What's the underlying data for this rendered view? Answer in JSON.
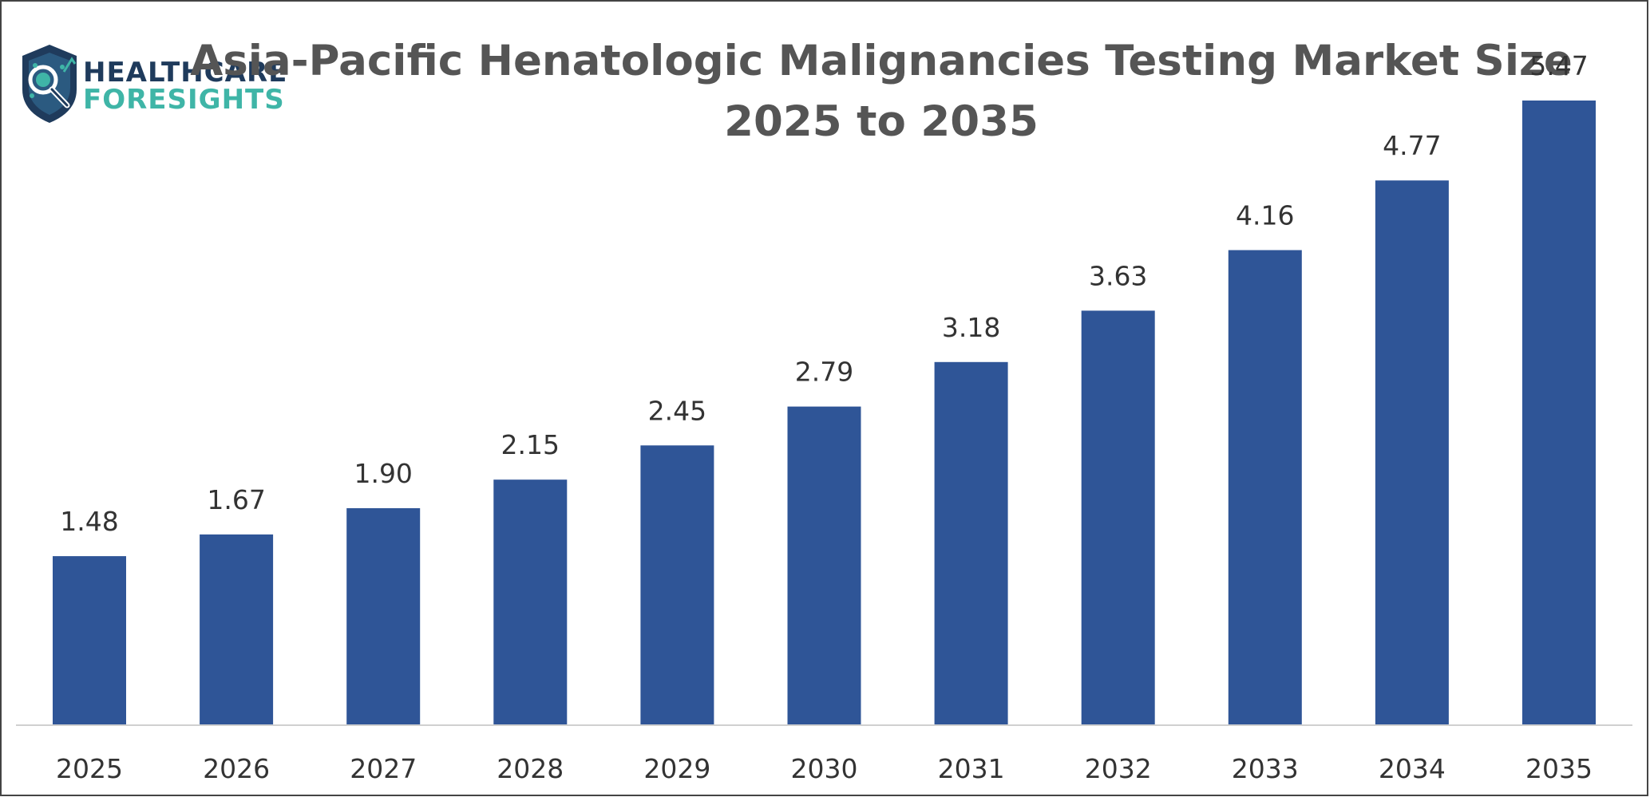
{
  "logo": {
    "line1": "HEALTHCARE",
    "line2": "FORESIGHTS",
    "icon": "shield-magnifier-icon",
    "colors": {
      "dark": "#1f3b5c",
      "teal": "#3fb5a7"
    }
  },
  "chart_data": {
    "type": "bar",
    "title": "Asia-Pacific Henatologic Malignancies Testing Market Size",
    "subtitle": "2025 to 2035",
    "xlabel": "",
    "ylabel": "",
    "categories": [
      "2025",
      "2026",
      "2027",
      "2028",
      "2029",
      "2030",
      "2031",
      "2032",
      "2033",
      "2034",
      "2035"
    ],
    "values": [
      1.48,
      1.67,
      1.9,
      2.15,
      2.45,
      2.79,
      3.18,
      3.63,
      4.16,
      4.77,
      5.47
    ],
    "value_labels": [
      "1.48",
      "1.67",
      "1.90",
      "2.15",
      "2.45",
      "2.79",
      "3.18",
      "3.63",
      "4.16",
      "4.77",
      "5.47"
    ],
    "ylim": [
      0,
      5.47
    ],
    "grid": false,
    "legend": "none",
    "colors": {
      "bar": "#2f5597",
      "title": "#555555",
      "label": "#333333",
      "axis": "#d0d0d0"
    }
  }
}
